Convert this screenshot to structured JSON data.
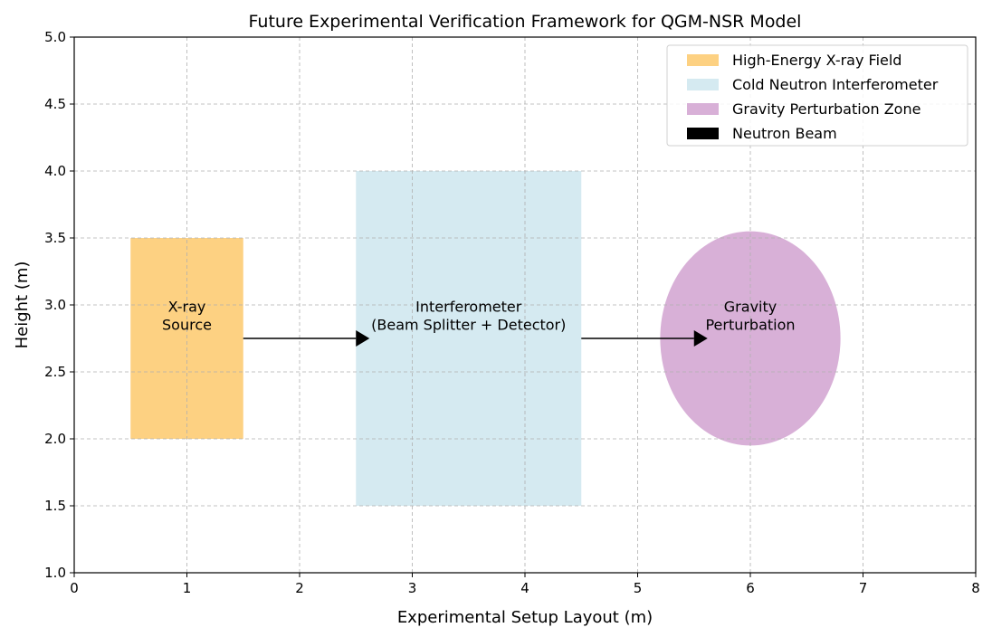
{
  "chart_data": {
    "type": "diagram",
    "title": "Future Experimental Verification Framework for QGM-NSR Model",
    "xlabel": "Experimental Setup Layout (m)",
    "ylabel": "Height (m)",
    "xlim": [
      0,
      8
    ],
    "ylim": [
      1.0,
      5.0
    ],
    "xticks": [
      0,
      1,
      2,
      3,
      4,
      5,
      6,
      7,
      8
    ],
    "xtick_labels": [
      "0",
      "1",
      "2",
      "3",
      "4",
      "5",
      "6",
      "7",
      "8"
    ],
    "yticks": [
      1.0,
      1.5,
      2.0,
      2.5,
      3.0,
      3.5,
      4.0,
      4.5,
      5.0
    ],
    "ytick_labels": [
      "1.0",
      "1.5",
      "2.0",
      "2.5",
      "3.0",
      "3.5",
      "4.0",
      "4.5",
      "5.0"
    ],
    "grid": true,
    "legend_position": "top-right",
    "shapes": [
      {
        "kind": "rect",
        "name": "xray-field",
        "x": 0.5,
        "y": 2.0,
        "width": 1.0,
        "height": 1.5,
        "color": "#FDD182",
        "label": [
          "X-ray",
          "Source"
        ],
        "label_pos": [
          1.0,
          2.95
        ]
      },
      {
        "kind": "rect",
        "name": "interferometer",
        "x": 2.5,
        "y": 1.5,
        "width": 2.0,
        "height": 2.5,
        "color": "#D5EAF1",
        "label": [
          "Interferometer",
          "(Beam Splitter + Detector)"
        ],
        "label_pos": [
          3.5,
          2.95
        ]
      },
      {
        "kind": "ellipse",
        "name": "gravity-zone",
        "cx": 6.0,
        "cy": 2.75,
        "rx": 0.8,
        "ry": 0.8,
        "color": "#D8B0D7",
        "label": [
          "Gravity",
          "Perturbation"
        ],
        "label_pos": [
          6.0,
          2.95
        ]
      }
    ],
    "arrows": [
      {
        "x": 1.5,
        "y": 2.75,
        "dx": 1.0,
        "dy": 0
      },
      {
        "x": 4.5,
        "y": 2.75,
        "dx": 1.0,
        "dy": 0
      }
    ],
    "legend": [
      {
        "label": "High-Energy X-ray Field",
        "color": "#FDD182"
      },
      {
        "label": "Cold Neutron Interferometer",
        "color": "#D5EAF1"
      },
      {
        "label": "Gravity Perturbation Zone",
        "color": "#D8B0D7"
      },
      {
        "label": "Neutron Beam",
        "color": "#000000"
      }
    ]
  }
}
